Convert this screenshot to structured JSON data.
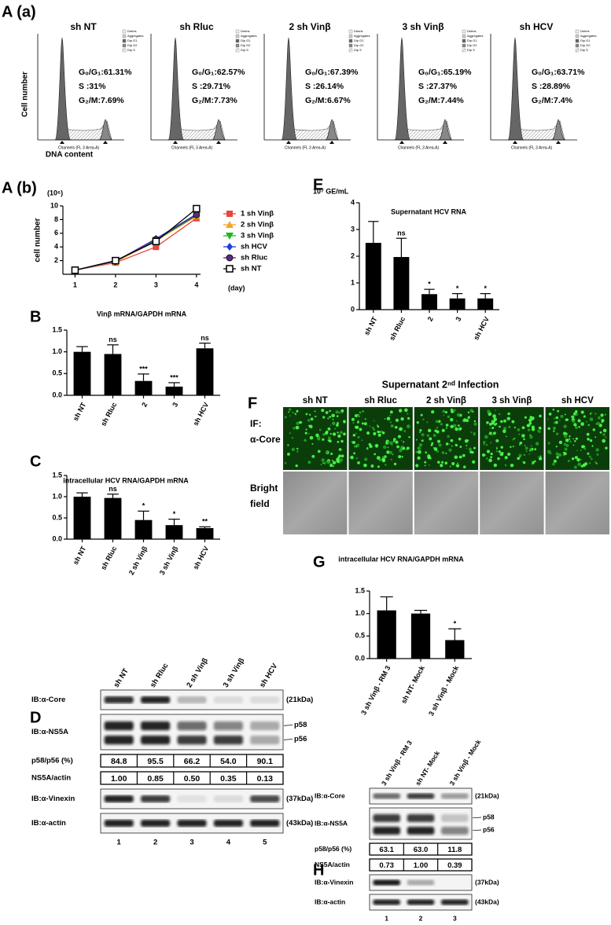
{
  "panel_a": {
    "label": "A (a)",
    "y_label": "Cell number",
    "x_label": "DNA content",
    "channel_label": "Channels (FL 3 Area-A)",
    "legend_items": [
      "Debris",
      "Aggregates",
      "Dip G1",
      "Dip G2",
      "Dip S"
    ],
    "histograms": [
      {
        "title": "sh NT",
        "stats": [
          "G₀/G₁:61.31%",
          "S :31%",
          "G₂/M:7.69%"
        ]
      },
      {
        "title": "sh Rluc",
        "stats": [
          "G₀/G₁:62.57%",
          "S :29.71%",
          "G₂/M:7.73%"
        ]
      },
      {
        "title": "2 sh Vinβ",
        "stats": [
          "G₀/G₁:67.39%",
          "S :26.14%",
          "G₂/M:6.67%"
        ]
      },
      {
        "title": "3 sh Vinβ",
        "stats": [
          "G₀/G₁:65.19%",
          "S :27.37%",
          "G₂/M:7.44%"
        ]
      },
      {
        "title": "sh HCV",
        "stats": [
          "G₀/G₁:63.71%",
          "S :28.89%",
          "G₂/M:7.4%"
        ]
      }
    ]
  },
  "chart_data": [
    {
      "type": "line",
      "panel": "A (b)",
      "y_unit": "(10⁶)",
      "x_unit": "(day)",
      "ylabel": "cell number",
      "x": [
        1,
        2,
        3,
        4
      ],
      "xlim": [
        0.7,
        4.1
      ],
      "xticks": [
        1,
        2,
        3,
        4
      ],
      "ylim": [
        0,
        10
      ],
      "yticks": [
        2,
        4,
        6,
        8,
        10
      ],
      "series": [
        {
          "name": "1 sh Vinβ",
          "color": "#e8453c",
          "marker": "square",
          "values": [
            0.6,
            1.7,
            4.0,
            8.2
          ]
        },
        {
          "name": "2 sh Vinβ",
          "color": "#f5a623",
          "marker": "triangle",
          "values": [
            0.6,
            1.8,
            4.9,
            8.5
          ]
        },
        {
          "name": "3 sh Vinβ",
          "color": "#1db81d",
          "marker": "triangle-down",
          "values": [
            0.6,
            1.9,
            5.0,
            8.6
          ]
        },
        {
          "name": "sh HCV",
          "color": "#1f3fd6",
          "marker": "diamond",
          "values": [
            0.6,
            1.9,
            5.2,
            8.8
          ]
        },
        {
          "name": "sh Rluc",
          "color": "#5a2a82",
          "marker": "circle",
          "values": [
            0.6,
            1.9,
            5.1,
            8.7
          ]
        },
        {
          "name": "sh NT",
          "color": "#000000",
          "marker": "open-square",
          "values": [
            0.6,
            2.0,
            4.8,
            9.6
          ]
        }
      ]
    },
    {
      "type": "bar",
      "panel": "E",
      "y_unit": "10⁷ GE/mL",
      "title": "Supernatant HCV RNA",
      "color": "#000000",
      "categories": [
        "sh NT",
        "sh Rluc",
        "2",
        "3",
        "sh HCV"
      ],
      "values": [
        2.5,
        1.97,
        0.58,
        0.42,
        0.42
      ],
      "errors": [
        0.8,
        0.7,
        0.18,
        0.18,
        0.18
      ],
      "annotations": [
        null,
        "ns",
        "*",
        "*",
        "*"
      ],
      "ylim": [
        0,
        4
      ],
      "yticks": [
        0,
        1,
        2,
        3,
        4
      ]
    },
    {
      "type": "bar",
      "panel": "B",
      "title": "Vinβ mRNA/GAPDH mRNA",
      "color": "#000000",
      "categories": [
        "sh NT",
        "sh Rluc",
        "2",
        "3",
        "sh HCV"
      ],
      "values": [
        1.0,
        0.95,
        0.33,
        0.2,
        1.08
      ],
      "errors": [
        0.12,
        0.21,
        0.16,
        0.09,
        0.12
      ],
      "annotations": [
        null,
        "ns",
        "***",
        "***",
        "ns"
      ],
      "ylim": [
        0,
        1.5
      ],
      "yticks": [
        {
          "value": 0,
          "label": "0.0"
        },
        {
          "value": 0.5,
          "label": "0.5"
        },
        {
          "value": 1,
          "label": "1.0"
        },
        {
          "value": 1.5,
          "label": "1.5"
        }
      ]
    },
    {
      "type": "bar",
      "panel": "C",
      "title": "intracellular HCV RNA/GAPDH mRNA",
      "color": "#000000",
      "categories": [
        "sh NT",
        "sh Rluc",
        "2 sh Vinβ",
        "3 sh Vinβ",
        "sh HCV"
      ],
      "values": [
        1.0,
        0.97,
        0.45,
        0.33,
        0.26
      ],
      "errors": [
        0.09,
        0.09,
        0.21,
        0.14,
        0.03
      ],
      "annotations": [
        null,
        "ns",
        "*",
        "*",
        "**"
      ],
      "ylim": [
        0,
        1.5
      ],
      "yticks": [
        {
          "value": 0,
          "label": "0.0"
        },
        {
          "value": 0.5,
          "label": "0.5"
        },
        {
          "value": 1,
          "label": "1.0"
        },
        {
          "value": 1.5,
          "label": "1.5"
        }
      ]
    },
    {
      "type": "bar",
      "panel": "G",
      "title": "intracellular HCV RNA/GAPDH mRNA",
      "color": "#000000",
      "categories": [
        "3 sh Vinβ - RM 3",
        "sh NT- Mock",
        "3 sh Vinβ - Mock"
      ],
      "values": [
        1.07,
        1.0,
        0.41
      ],
      "errors": [
        0.3,
        0.07,
        0.25
      ],
      "annotations": [
        null,
        null,
        "*"
      ],
      "ylim": [
        0,
        1.5
      ],
      "yticks": [
        {
          "value": 0,
          "label": "0.0"
        },
        {
          "value": 0.5,
          "label": "0.5"
        },
        {
          "value": 1,
          "label": "1.0"
        },
        {
          "value": 1.5,
          "label": "1.5"
        }
      ]
    }
  ],
  "panel_f": {
    "label": "F",
    "title": "Supernatant 2ⁿᵈ Infection",
    "columns": [
      "sh NT",
      "sh Rluc",
      "2 sh Vinβ",
      "3 sh Vinβ",
      "sh HCV"
    ],
    "rows": [
      [
        "IF:",
        "α-Core"
      ],
      [
        "Bright",
        "field"
      ]
    ]
  },
  "panel_d": {
    "label": "D",
    "lanes": [
      "sh NT",
      "sh Rluc",
      "2 sh Vinβ",
      "3 sh Vinβ",
      "sh HCV"
    ],
    "blots": [
      {
        "label": "IB:α-Core",
        "size": "(21kDa)"
      },
      {
        "label": "IB:α-NS5A",
        "bands": [
          "p58",
          "p56"
        ]
      },
      {
        "label": "IB:α-Vinexin",
        "size": "(37kDa)"
      },
      {
        "label": "IB:α-actin",
        "size": "(43kDa)"
      }
    ],
    "ratios": [
      {
        "label": "p58/p56 (%)",
        "values": [
          "84.8",
          "95.5",
          "66.2",
          "54.0",
          "90.1"
        ]
      },
      {
        "label": "NS5A/actin",
        "values": [
          "1.00",
          "0.85",
          "0.50",
          "0.35",
          "0.13"
        ]
      }
    ],
    "lane_numbers": [
      1,
      2,
      3,
      4,
      5
    ]
  },
  "panel_h": {
    "label": "H",
    "lanes": [
      "3 sh Vinβ - RM 3",
      "sh NT- Mock",
      "3 sh Vinβ - Mock"
    ],
    "blots": [
      {
        "label": "IB:α-Core",
        "size": "(21kDa)"
      },
      {
        "label": "IB:α-NS5A",
        "bands": [
          "p58",
          "p56"
        ]
      },
      {
        "label": "IB:α-Vinexin",
        "size": "(37kDa)"
      },
      {
        "label": "IB:α-actin",
        "size": "(43kDa)"
      }
    ],
    "ratios": [
      {
        "label": "p58/p56 (%)",
        "values": [
          "63.1",
          "63.0",
          "11.8"
        ]
      },
      {
        "label": "NS5A/actin",
        "values": [
          "0.73",
          "1.00",
          "0.39"
        ]
      }
    ],
    "lane_numbers": [
      1,
      2,
      3
    ]
  }
}
